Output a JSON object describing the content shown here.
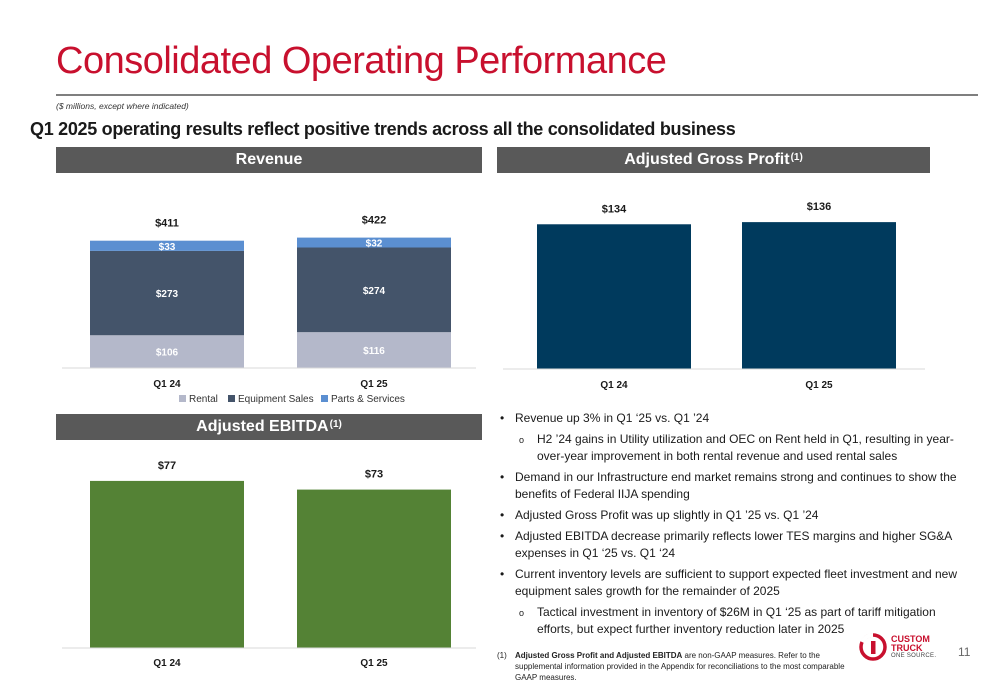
{
  "slide": {
    "title": "Consolidated Operating Performance",
    "units_note": "($ millions, except where indicated)",
    "subtitle": "Q1 2025 operating results reflect positive trends across all the consolidated business",
    "page_number": "11"
  },
  "headers": {
    "revenue": "Revenue",
    "gross_profit": "Adjusted Gross Profit",
    "gross_profit_sup": "(1)",
    "ebitda": "Adjusted EBITDA",
    "ebitda_sup": "(1)"
  },
  "colors": {
    "title_red": "#c8102e",
    "header_gray": "#595959",
    "rental": "#b4b8ca",
    "equipment_sales": "#44546a",
    "parts_services": "#5b8fd1",
    "gross_profit_bar": "#003a5d",
    "ebitda_bar": "#548235"
  },
  "chart_data": [
    {
      "id": "revenue",
      "type": "bar",
      "stacked": true,
      "categories": [
        "Q1 24",
        "Q1 25"
      ],
      "series": [
        {
          "name": "Rental",
          "values": [
            106,
            116
          ],
          "labels": [
            "$106",
            "$116"
          ]
        },
        {
          "name": "Equipment Sales",
          "values": [
            273,
            274
          ],
          "labels": [
            "$273",
            "$274"
          ]
        },
        {
          "name": "Parts & Services",
          "values": [
            33,
            32
          ],
          "labels": [
            "$33",
            "$32"
          ]
        }
      ],
      "totals": [
        411,
        422
      ],
      "total_labels": [
        "$411",
        "$422"
      ],
      "legend": "bottom"
    },
    {
      "id": "gross_profit",
      "type": "bar",
      "categories": [
        "Q1 24",
        "Q1 25"
      ],
      "values": [
        134,
        136
      ],
      "labels": [
        "$134",
        "$136"
      ]
    },
    {
      "id": "ebitda",
      "type": "bar",
      "categories": [
        "Q1 24",
        "Q1 25"
      ],
      "values": [
        77,
        73
      ],
      "labels": [
        "$77",
        "$73"
      ]
    }
  ],
  "bullets": [
    {
      "level": 1,
      "text": "Revenue up 3% in Q1 ‘25 vs. Q1 ’24"
    },
    {
      "level": 2,
      "text": "H2 ’24 gains in Utility utilization and OEC on Rent held in Q1, resulting in year-over-year improvement in both rental revenue and used rental sales"
    },
    {
      "level": 1,
      "text": "Demand in our Infrastructure end market remains strong and continues to show the benefits of Federal IIJA spending"
    },
    {
      "level": 1,
      "text": "Adjusted Gross Profit was up slightly in Q1 ’25 vs. Q1 ’24"
    },
    {
      "level": 1,
      "text": "Adjusted EBITDA decrease primarily reflects lower TES margins and higher SG&A expenses in Q1 ‘25 vs. Q1 ‘24"
    },
    {
      "level": 1,
      "text": "Current inventory levels are sufficient to support expected fleet investment and new equipment sales growth for the remainder of 2025"
    },
    {
      "level": 2,
      "text": "Tactical investment in inventory of $26M in Q1 ‘25 as part of tariff mitigation efforts, but expect further inventory reduction later in 2025"
    }
  ],
  "footnote": {
    "number": "(1)",
    "bold": "Adjusted Gross Profit and Adjusted EBITDA",
    "text": " are non-GAAP measures. Refer to the supplemental information provided in the Appendix for reconciliations to the most comparable GAAP measures."
  },
  "logo": {
    "line1": "CUSTOM",
    "line2": "TRUCK",
    "line3": "ONE SOURCE."
  }
}
